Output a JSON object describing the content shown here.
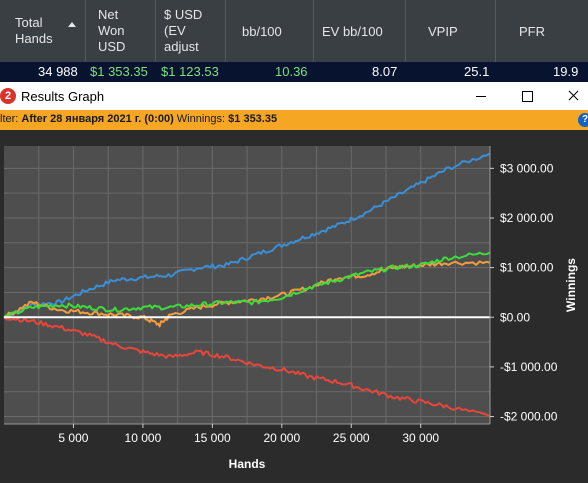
{
  "stats": {
    "headers": [
      {
        "label": "Total\nHands",
        "sorted": true
      },
      {
        "label": "Net\nWon\nUSD"
      },
      {
        "label": "$ USD\n(EV\nadjust"
      },
      {
        "label": "bb/100"
      },
      {
        "label": "EV bb/100"
      },
      {
        "label": "VPIP"
      },
      {
        "label": "PFR"
      }
    ],
    "row": {
      "total_hands": "34 988",
      "net_won": "$1 353.35",
      "ev_adjusted": "$1 123.53",
      "bb100": "10.36",
      "ev_bb100": "8.07",
      "vpip": "25.1",
      "pfr": "19.9"
    },
    "colors": {
      "neutral": "#ffffff",
      "positive": "#7ee07e"
    }
  },
  "window": {
    "icon_glyph": "2",
    "title": "Results Graph"
  },
  "filter": {
    "prefix": "lter: ",
    "condition": "After 28 января 2021 г. (0:00)",
    "winnings_label": " Winnings: ",
    "winnings_value": "$1 353.35",
    "help_glyph": "?"
  },
  "chart_data": {
    "type": "line",
    "xlabel": "Hands",
    "ylabel": "Winnings",
    "xlim": [
      0,
      34988
    ],
    "ylim": [
      -2150,
      3450
    ],
    "x_ticks": [
      5000,
      10000,
      15000,
      20000,
      25000,
      30000
    ],
    "x_tick_labels": [
      "5 000",
      "10 000",
      "15 000",
      "20 000",
      "25 000",
      "30 000"
    ],
    "y_ticks": [
      3000,
      2000,
      1000,
      0,
      -1000,
      -2000
    ],
    "y_tick_labels": [
      "$3 000.00",
      "$2 000.00",
      "$1 000.00",
      "$0.00",
      "-$1 000.00",
      "-$2 000.00"
    ],
    "grid": true,
    "series": [
      {
        "color": "#3a8fd6",
        "x": [
          0,
          2000,
          4000,
          6000,
          8000,
          10000,
          12000,
          14000,
          16000,
          18000,
          20000,
          22000,
          24000,
          26000,
          28000,
          30000,
          32000,
          34988
        ],
        "y": [
          0,
          250,
          300,
          550,
          750,
          800,
          850,
          1000,
          1050,
          1250,
          1450,
          1650,
          1850,
          2100,
          2400,
          2700,
          3000,
          3300
        ]
      },
      {
        "color": "#f39c3c",
        "x": [
          0,
          2000,
          4000,
          6000,
          8000,
          10000,
          11200,
          12000,
          14000,
          16000,
          18000,
          20000,
          22000,
          24000,
          26000,
          28000,
          30000,
          32000,
          34988
        ],
        "y": [
          0,
          300,
          150,
          100,
          50,
          0,
          -150,
          50,
          200,
          300,
          350,
          450,
          600,
          800,
          850,
          1000,
          1050,
          1100,
          1100
        ]
      },
      {
        "color": "#3ddb3d",
        "x": [
          0,
          2000,
          4000,
          6000,
          8000,
          10000,
          12000,
          14000,
          16000,
          18000,
          20000,
          22000,
          24000,
          26000,
          28000,
          30000,
          32000,
          34988
        ],
        "y": [
          0,
          200,
          250,
          200,
          150,
          200,
          200,
          250,
          300,
          300,
          400,
          600,
          750,
          900,
          1000,
          1050,
          1200,
          1300
        ]
      },
      {
        "color": "#e8463a",
        "x": [
          0,
          2000,
          4000,
          6000,
          8000,
          10000,
          12000,
          14000,
          16000,
          18000,
          20000,
          22000,
          24000,
          26000,
          28000,
          30000,
          32000,
          34988
        ],
        "y": [
          0,
          -80,
          -200,
          -350,
          -550,
          -700,
          -800,
          -700,
          -800,
          -950,
          -1050,
          -1200,
          -1300,
          -1450,
          -1600,
          -1700,
          -1800,
          -2000
        ]
      }
    ],
    "colors": {
      "background": "#2b2b2b",
      "plot": "#4e4e4e",
      "grid": "#6a6a6a",
      "zero_line": "#ffffff"
    }
  }
}
